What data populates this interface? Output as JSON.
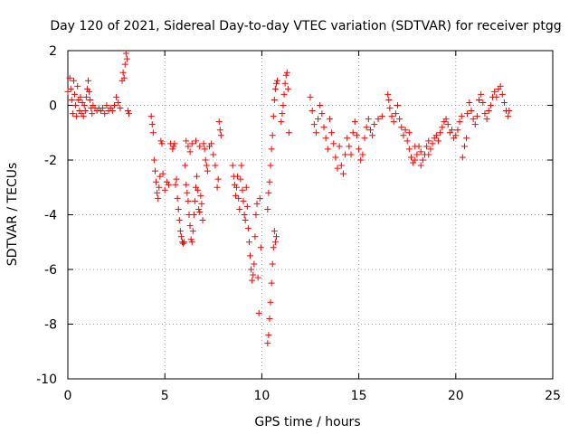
{
  "chart_data": {
    "type": "scatter",
    "title": "Day 120 of 2021, Sidereal Day-to-day VTEC variation (SDTVAR) for receiver ptgg",
    "xlabel": "GPS time / hours",
    "ylabel": "SDTVAR / TECUs",
    "xlim": [
      0,
      25
    ],
    "ylim": [
      -10,
      2
    ],
    "xticks": [
      0,
      5,
      10,
      15,
      20,
      25
    ],
    "yticks": [
      -10,
      -8,
      -6,
      -4,
      -2,
      0,
      2
    ],
    "xtick_labels": [
      "0",
      "5",
      "10",
      "15",
      "20",
      "25"
    ],
    "ytick_labels": [
      "-10",
      "-8",
      "-6",
      "-4",
      "-2",
      "0",
      "2"
    ],
    "grid": true,
    "marker": "+",
    "color": "#ff0000",
    "series": [
      {
        "name": "SDTVAR",
        "points": [
          [
            0.0,
            0.5
          ],
          [
            0.1,
            1.0
          ],
          [
            0.15,
            0.6
          ],
          [
            0.2,
            0.2
          ],
          [
            0.25,
            -0.3
          ],
          [
            0.3,
            0.9
          ],
          [
            0.35,
            0.4
          ],
          [
            0.4,
            0.0
          ],
          [
            0.45,
            -0.4
          ],
          [
            0.5,
            0.7
          ],
          [
            0.55,
            0.2
          ],
          [
            0.6,
            -0.2
          ],
          [
            0.65,
            0.3
          ],
          [
            0.7,
            -0.3
          ],
          [
            0.75,
            0.1
          ],
          [
            0.8,
            -0.4
          ],
          [
            0.85,
            0.0
          ],
          [
            0.9,
            -0.2
          ],
          [
            0.95,
            0.3
          ],
          [
            1.0,
            0.6
          ],
          [
            1.05,
            0.9
          ],
          [
            1.1,
            0.5
          ],
          [
            1.15,
            0.2
          ],
          [
            1.2,
            -0.1
          ],
          [
            1.25,
            -0.3
          ],
          [
            1.3,
            0.0
          ],
          [
            1.4,
            -0.1
          ],
          [
            1.5,
            -0.2
          ],
          [
            1.6,
            -0.1
          ],
          [
            1.7,
            -0.2
          ],
          [
            1.8,
            -0.1
          ],
          [
            1.9,
            -0.3
          ],
          [
            2.0,
            0.0
          ],
          [
            2.1,
            -0.2
          ],
          [
            2.2,
            -0.1
          ],
          [
            2.3,
            -0.2
          ],
          [
            2.4,
            0.0
          ],
          [
            2.5,
            0.3
          ],
          [
            2.6,
            0.1
          ],
          [
            2.7,
            -0.1
          ],
          [
            2.8,
            0.9
          ],
          [
            2.85,
            1.2
          ],
          [
            2.9,
            1.0
          ],
          [
            2.95,
            1.5
          ],
          [
            3.0,
            1.9
          ],
          [
            3.05,
            1.7
          ],
          [
            3.1,
            -0.2
          ],
          [
            3.15,
            -0.3
          ],
          [
            4.3,
            -0.4
          ],
          [
            4.35,
            -0.7
          ],
          [
            4.4,
            -1.0
          ],
          [
            4.45,
            -2.0
          ],
          [
            4.5,
            -2.4
          ],
          [
            4.55,
            -2.8
          ],
          [
            4.6,
            -3.2
          ],
          [
            4.65,
            -3.4
          ],
          [
            4.7,
            -3.0
          ],
          [
            4.75,
            -2.6
          ],
          [
            4.8,
            -1.3
          ],
          [
            4.85,
            -1.4
          ],
          [
            4.9,
            -2.5
          ],
          [
            5.0,
            -3.1
          ],
          [
            5.1,
            -2.8
          ],
          [
            5.2,
            -2.9
          ],
          [
            5.3,
            -1.4
          ],
          [
            5.4,
            -1.6
          ],
          [
            5.45,
            -1.5
          ],
          [
            5.5,
            -1.4
          ],
          [
            5.55,
            -2.9
          ],
          [
            5.6,
            -2.7
          ],
          [
            5.65,
            -3.4
          ],
          [
            5.7,
            -3.8
          ],
          [
            5.75,
            -4.2
          ],
          [
            5.8,
            -4.6
          ],
          [
            5.85,
            -4.8
          ],
          [
            5.9,
            -5.0
          ],
          [
            5.95,
            -5.05
          ],
          [
            6.0,
            -5.0
          ],
          [
            6.05,
            -2.2
          ],
          [
            6.1,
            -2.9
          ],
          [
            6.15,
            -3.2
          ],
          [
            6.2,
            -3.5
          ],
          [
            6.25,
            -4.0
          ],
          [
            6.3,
            -4.4
          ],
          [
            6.35,
            -4.9
          ],
          [
            6.4,
            -5.0
          ],
          [
            6.45,
            -4.6
          ],
          [
            6.5,
            -4.0
          ],
          [
            6.55,
            -3.5
          ],
          [
            6.6,
            -3.0
          ],
          [
            6.65,
            -2.6
          ],
          [
            6.7,
            -3.1
          ],
          [
            6.75,
            -3.8
          ],
          [
            6.8,
            -3.9
          ],
          [
            6.85,
            -3.3
          ],
          [
            6.9,
            -3.6
          ],
          [
            6.95,
            -4.2
          ],
          [
            7.0,
            -1.4
          ],
          [
            7.05,
            -1.6
          ],
          [
            7.1,
            -2.0
          ],
          [
            7.15,
            -2.2
          ],
          [
            7.2,
            -2.4
          ],
          [
            7.3,
            -1.5
          ],
          [
            7.4,
            -1.4
          ],
          [
            7.5,
            -1.8
          ],
          [
            7.6,
            -2.2
          ],
          [
            7.7,
            -3.0
          ],
          [
            7.75,
            -2.7
          ],
          [
            7.8,
            -0.6
          ],
          [
            7.85,
            -0.9
          ],
          [
            7.9,
            -1.1
          ],
          [
            6.1,
            -1.3
          ],
          [
            6.2,
            -1.5
          ],
          [
            6.3,
            -1.7
          ],
          [
            6.4,
            -1.4
          ],
          [
            6.6,
            -1.3
          ],
          [
            6.8,
            -1.5
          ],
          [
            8.5,
            -2.2
          ],
          [
            8.55,
            -2.6
          ],
          [
            8.6,
            -2.9
          ],
          [
            8.65,
            -3.3
          ],
          [
            8.7,
            -3.0
          ],
          [
            8.75,
            -2.6
          ],
          [
            8.8,
            -3.4
          ],
          [
            8.85,
            -3.8
          ],
          [
            8.9,
            -2.7
          ],
          [
            8.95,
            -2.2
          ],
          [
            9.0,
            -3.1
          ],
          [
            9.05,
            -3.5
          ],
          [
            9.1,
            -4.0
          ],
          [
            9.15,
            -4.2
          ],
          [
            9.2,
            -3.0
          ],
          [
            9.25,
            -3.7
          ],
          [
            9.3,
            -4.5
          ],
          [
            9.35,
            -5.0
          ],
          [
            9.4,
            -5.5
          ],
          [
            9.45,
            -6.0
          ],
          [
            9.5,
            -6.4
          ],
          [
            9.55,
            -6.2
          ],
          [
            9.6,
            -5.8
          ],
          [
            9.65,
            -4.8
          ],
          [
            9.7,
            -4.0
          ],
          [
            9.75,
            -3.6
          ],
          [
            9.8,
            -6.3
          ],
          [
            9.85,
            -7.6
          ],
          [
            9.9,
            -3.4
          ],
          [
            9.95,
            -5.2
          ],
          [
            10.3,
            -8.7
          ],
          [
            10.35,
            -8.4
          ],
          [
            10.4,
            -7.8
          ],
          [
            10.45,
            -7.2
          ],
          [
            10.5,
            -6.5
          ],
          [
            10.55,
            -5.8
          ],
          [
            10.6,
            -5.2
          ],
          [
            10.65,
            -4.6
          ],
          [
            10.7,
            -5.0
          ],
          [
            10.75,
            -4.8
          ],
          [
            10.3,
            -3.8
          ],
          [
            10.35,
            -3.2
          ],
          [
            10.4,
            -2.8
          ],
          [
            10.45,
            -2.2
          ],
          [
            10.5,
            -1.6
          ],
          [
            10.55,
            -1.1
          ],
          [
            10.6,
            -0.4
          ],
          [
            10.65,
            0.2
          ],
          [
            10.7,
            0.6
          ],
          [
            10.75,
            0.8
          ],
          [
            10.8,
            0.9
          ],
          [
            11.0,
            -0.6
          ],
          [
            11.05,
            -0.3
          ],
          [
            11.1,
            0.0
          ],
          [
            11.15,
            0.4
          ],
          [
            11.2,
            0.8
          ],
          [
            11.25,
            1.1
          ],
          [
            11.3,
            1.2
          ],
          [
            11.35,
            0.6
          ],
          [
            11.4,
            -1.0
          ],
          [
            12.5,
            0.3
          ],
          [
            12.6,
            -0.2
          ],
          [
            12.7,
            -0.7
          ],
          [
            12.8,
            -1.0
          ],
          [
            12.9,
            -0.5
          ],
          [
            13.0,
            0.0
          ],
          [
            13.1,
            -0.3
          ],
          [
            13.2,
            -0.8
          ],
          [
            13.3,
            -1.2
          ],
          [
            13.4,
            -1.6
          ],
          [
            13.5,
            -0.5
          ],
          [
            13.6,
            -1.0
          ],
          [
            13.7,
            -1.4
          ],
          [
            13.8,
            -1.9
          ],
          [
            13.9,
            -2.3
          ],
          [
            14.0,
            -1.5
          ],
          [
            14.1,
            -2.2
          ],
          [
            14.2,
            -2.5
          ],
          [
            14.3,
            -1.8
          ],
          [
            14.4,
            -1.2
          ],
          [
            14.5,
            -1.5
          ],
          [
            14.6,
            -1.8
          ],
          [
            14.7,
            -1.0
          ],
          [
            14.8,
            -0.6
          ],
          [
            14.9,
            -1.1
          ],
          [
            15.0,
            -1.6
          ],
          [
            15.1,
            -2.0
          ],
          [
            15.2,
            -1.8
          ],
          [
            15.3,
            -1.2
          ],
          [
            15.4,
            -0.8
          ],
          [
            15.5,
            -0.5
          ],
          [
            15.6,
            -0.9
          ],
          [
            15.7,
            -1.1
          ],
          [
            15.8,
            -0.7
          ],
          [
            16.0,
            -0.5
          ],
          [
            16.2,
            -0.4
          ],
          [
            16.5,
            0.4
          ],
          [
            16.55,
            0.2
          ],
          [
            16.6,
            -0.1
          ],
          [
            16.7,
            -0.4
          ],
          [
            16.8,
            -0.6
          ],
          [
            16.9,
            -0.3
          ],
          [
            17.0,
            0.0
          ],
          [
            17.1,
            -0.5
          ],
          [
            17.2,
            -0.8
          ],
          [
            17.3,
            -1.1
          ],
          [
            17.4,
            -0.9
          ],
          [
            17.5,
            -1.3
          ],
          [
            17.6,
            -1.6
          ],
          [
            17.7,
            -1.9
          ],
          [
            17.8,
            -2.1
          ],
          [
            17.9,
            -2.0
          ],
          [
            18.0,
            -1.8
          ],
          [
            18.1,
            -1.5
          ],
          [
            18.2,
            -1.7
          ],
          [
            18.3,
            -2.0
          ],
          [
            18.4,
            -1.8
          ],
          [
            18.5,
            -1.5
          ],
          [
            18.6,
            -1.3
          ],
          [
            18.7,
            -1.6
          ],
          [
            18.8,
            -1.4
          ],
          [
            18.9,
            -1.2
          ],
          [
            19.0,
            -1.1
          ],
          [
            19.1,
            -1.3
          ],
          [
            19.2,
            -1.0
          ],
          [
            19.3,
            -0.8
          ],
          [
            19.4,
            -0.6
          ],
          [
            19.5,
            -0.5
          ],
          [
            19.6,
            -0.7
          ],
          [
            19.7,
            -1.0
          ],
          [
            19.8,
            -0.9
          ],
          [
            19.9,
            -1.2
          ],
          [
            20.0,
            -1.1
          ],
          [
            20.1,
            -0.9
          ],
          [
            20.2,
            -0.6
          ],
          [
            20.3,
            -0.4
          ],
          [
            20.35,
            -1.9
          ],
          [
            20.45,
            -1.5
          ],
          [
            20.55,
            -1.2
          ],
          [
            20.6,
            -0.3
          ],
          [
            20.7,
            0.1
          ],
          [
            20.8,
            -0.2
          ],
          [
            20.9,
            -0.5
          ],
          [
            21.0,
            -0.7
          ],
          [
            21.1,
            -0.4
          ],
          [
            21.2,
            0.2
          ],
          [
            21.3,
            0.4
          ],
          [
            21.4,
            0.1
          ],
          [
            21.5,
            -0.3
          ],
          [
            21.6,
            -0.5
          ],
          [
            21.7,
            -0.2
          ],
          [
            21.8,
            0.0
          ],
          [
            21.9,
            0.3
          ],
          [
            22.0,
            0.5
          ],
          [
            22.1,
            0.3
          ],
          [
            22.2,
            0.6
          ],
          [
            22.3,
            0.7
          ],
          [
            22.4,
            0.4
          ],
          [
            22.5,
            0.1
          ],
          [
            22.6,
            -0.2
          ],
          [
            22.7,
            -0.4
          ],
          [
            22.75,
            -0.2
          ],
          [
            17.6,
            -1.0
          ],
          [
            17.9,
            -1.5
          ],
          [
            18.2,
            -2.2
          ],
          [
            18.6,
            -1.8
          ]
        ]
      }
    ]
  }
}
